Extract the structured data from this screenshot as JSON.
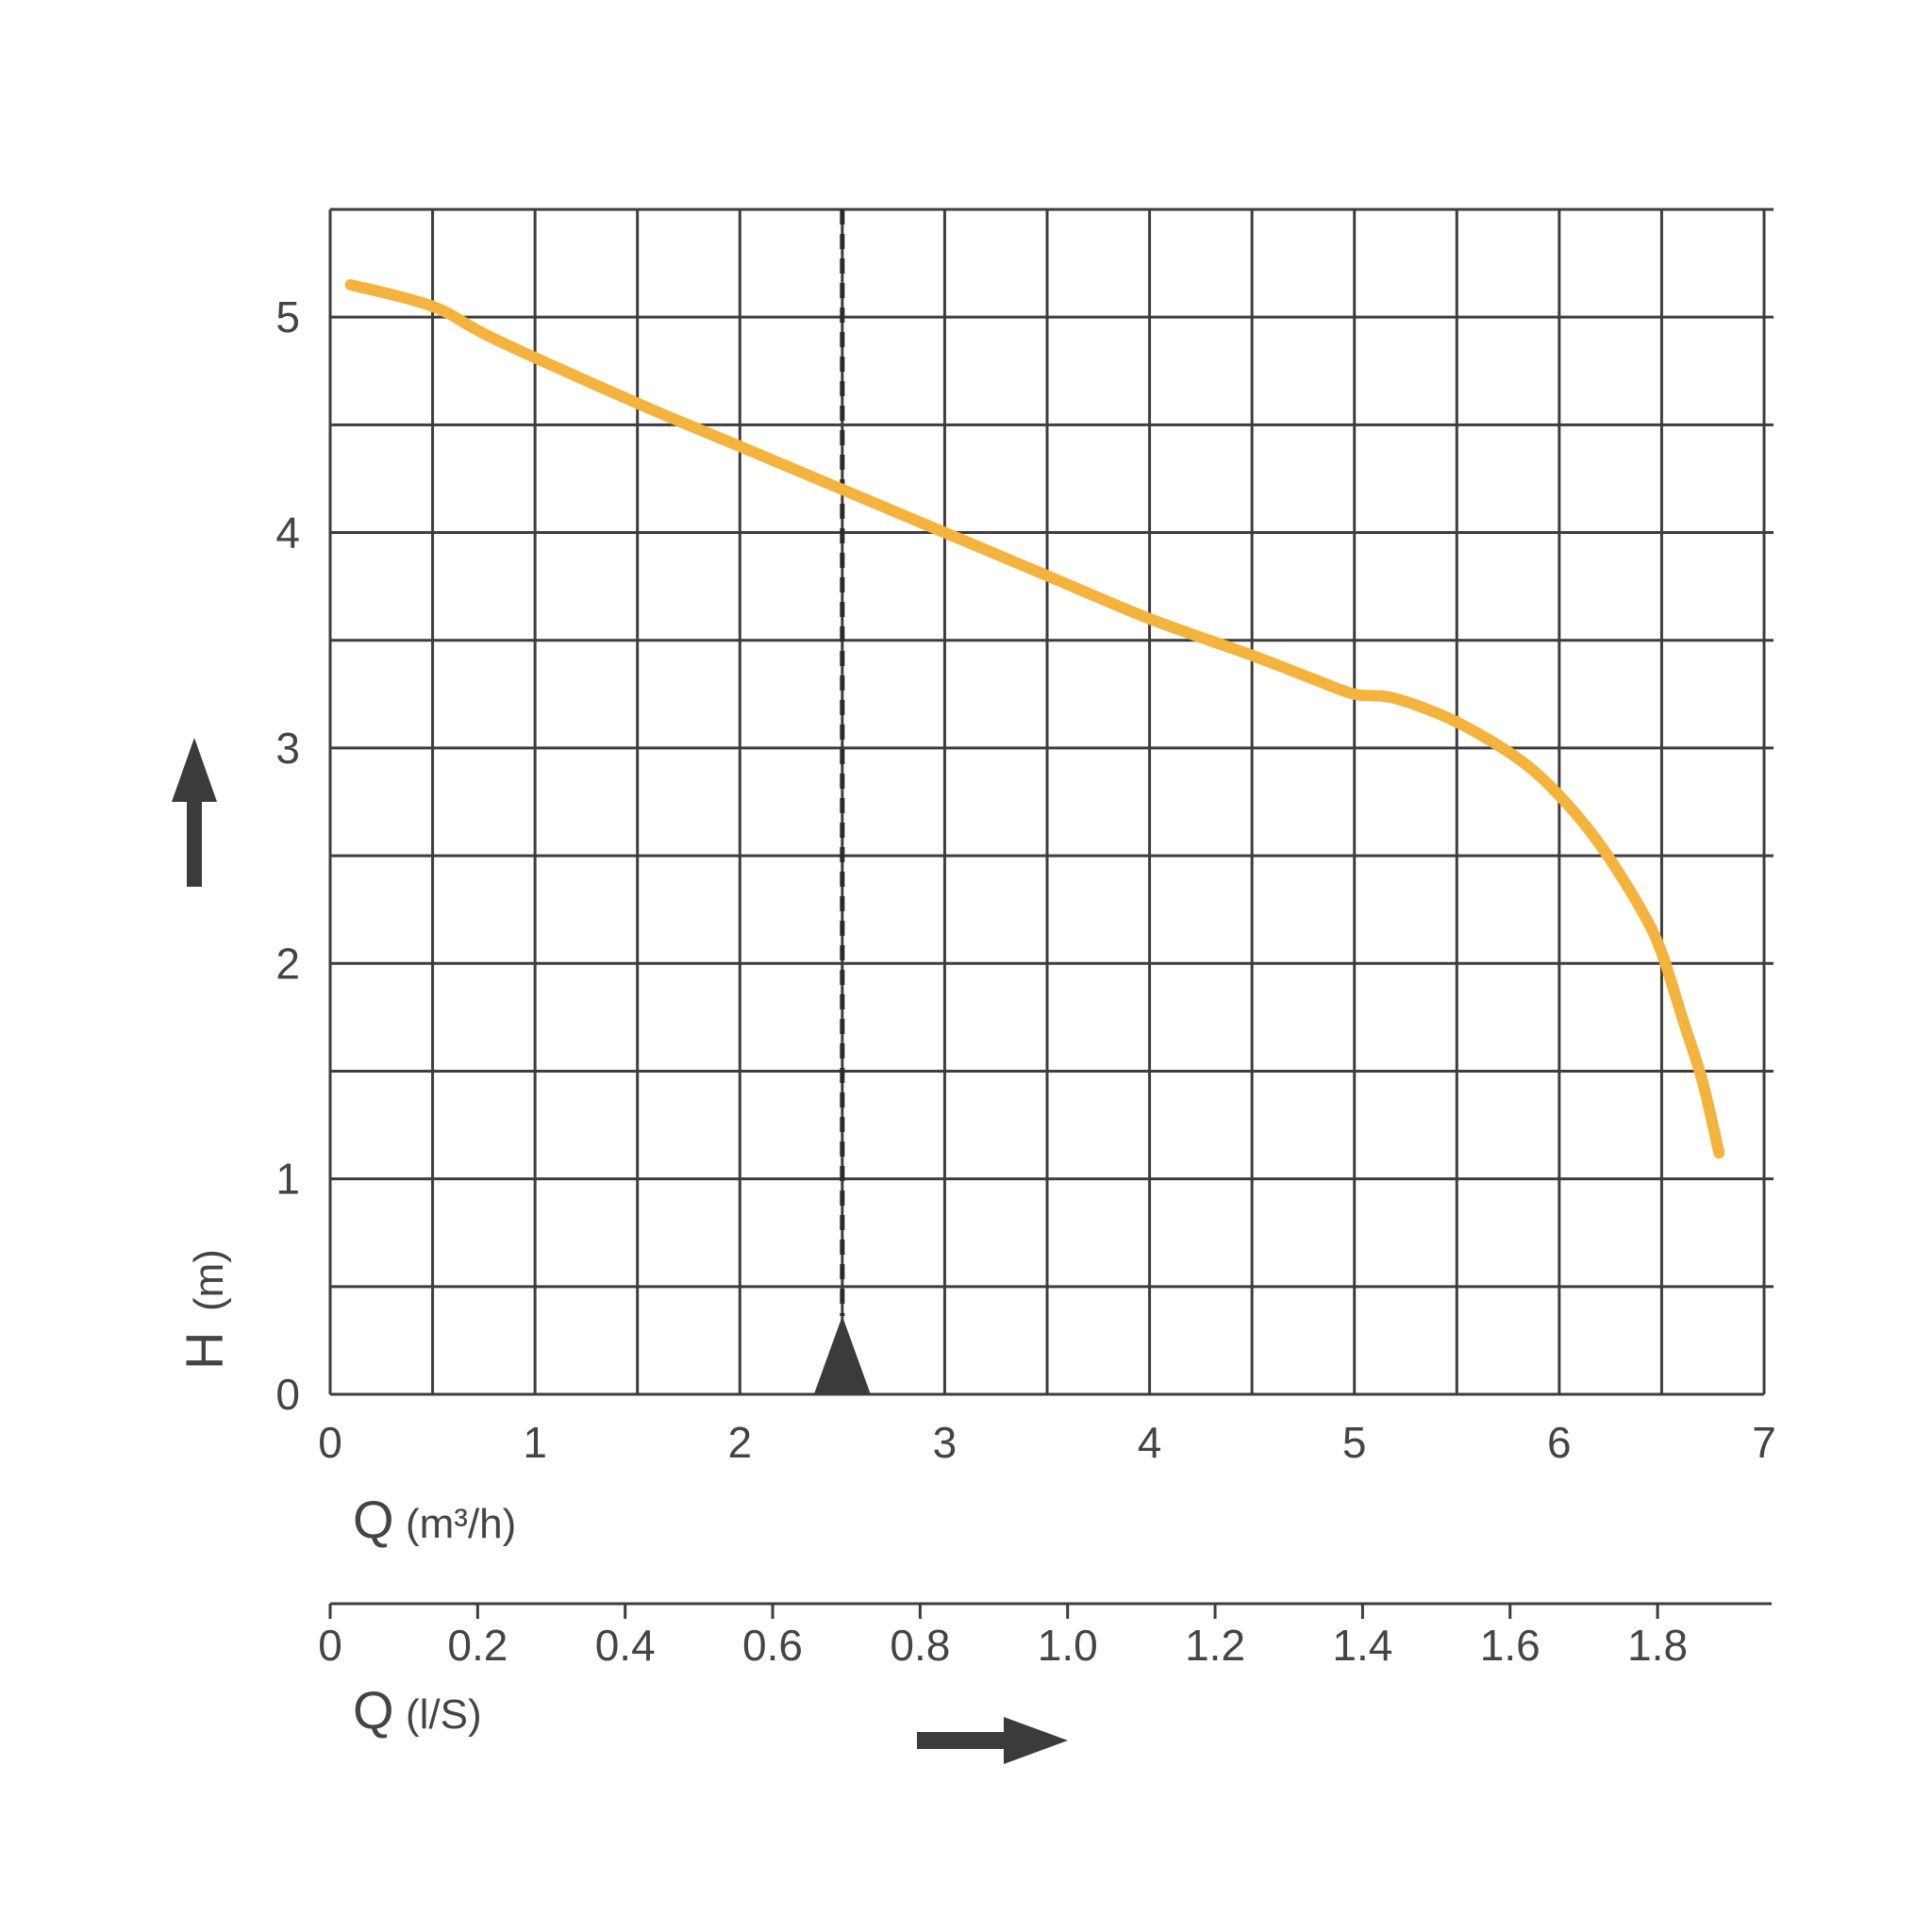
{
  "chart_data": {
    "type": "line",
    "title": "",
    "y_axis": {
      "letter": "H",
      "unit": "(m)",
      "ylim": [
        0,
        5.5
      ],
      "ticks": [
        0,
        1,
        2,
        3,
        4,
        5
      ],
      "tick_labels": [
        "0",
        "1",
        "2",
        "3",
        "4",
        "5"
      ]
    },
    "x_axis_primary": {
      "letter": "Q",
      "unit": "(m³/h)",
      "xlim": [
        0,
        7
      ],
      "ticks": [
        0,
        1,
        2,
        3,
        4,
        5,
        6,
        7
      ],
      "tick_labels": [
        "0",
        "1",
        "2",
        "3",
        "4",
        "5",
        "6",
        "7"
      ]
    },
    "x_axis_secondary": {
      "letter": "Q",
      "unit": "(l/S)",
      "ticks": [
        0,
        0.2,
        0.4,
        0.6,
        0.8,
        1.0,
        1.2,
        1.4,
        1.6,
        1.8
      ],
      "tick_labels": [
        "0",
        "0.2",
        "0.4",
        "0.6",
        "0.8",
        "1.0",
        "1.2",
        "1.4",
        "1.6",
        "1.8"
      ]
    },
    "grid": true,
    "marker_q": 2.5,
    "curve_color": "#f3b33d",
    "series": [
      {
        "x": [
          0.1,
          0.5,
          0.8,
          1.5,
          2.0,
          2.5,
          3.0,
          3.5,
          4.0,
          4.5,
          4.8,
          5.0,
          5.2,
          5.5,
          5.8,
          6.0,
          6.2,
          6.4,
          6.5,
          6.6,
          6.7,
          6.78
        ],
        "values": [
          5.15,
          5.05,
          4.9,
          4.6,
          4.4,
          4.2,
          4.0,
          3.8,
          3.6,
          3.43,
          3.32,
          3.25,
          3.23,
          3.12,
          2.95,
          2.78,
          2.55,
          2.25,
          2.05,
          1.75,
          1.45,
          1.12
        ]
      }
    ]
  }
}
